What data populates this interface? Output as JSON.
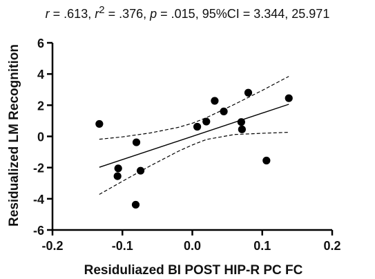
{
  "chart_data": {
    "type": "scatter",
    "title": {
      "r_sym": "r",
      "r_val": " = .613, ",
      "r2_sym": "r",
      "r2_sup": "2",
      "r2_val": " = .376, ",
      "p_sym": "p",
      "p_val": " = .015, 95%CI = 3.344, 25.971"
    },
    "xlabel": "Residuliazed BI POST HIP-R PC FC",
    "ylabel": "Residualized LM Recognition",
    "xlim": [
      -0.2,
      0.2
    ],
    "ylim": [
      -6,
      6
    ],
    "x_ticks": [
      -0.2,
      -0.1,
      0.0,
      0.1,
      0.2
    ],
    "x_tick_labels": [
      "-0.2",
      "-0.1",
      "0.0",
      "0.1",
      "0.2"
    ],
    "y_ticks": [
      -6,
      -4,
      -2,
      0,
      2,
      4,
      6
    ],
    "y_tick_labels": [
      "-6",
      "-4",
      "-2",
      "0",
      "2",
      "4",
      "6"
    ],
    "grid": false,
    "points": [
      {
        "x": -0.133,
        "y": 0.8
      },
      {
        "x": -0.106,
        "y": -2.05
      },
      {
        "x": -0.107,
        "y": -2.55
      },
      {
        "x": -0.08,
        "y": -0.38
      },
      {
        "x": -0.074,
        "y": -2.2
      },
      {
        "x": -0.081,
        "y": -4.38
      },
      {
        "x": 0.007,
        "y": 0.62
      },
      {
        "x": 0.02,
        "y": 0.95
      },
      {
        "x": 0.032,
        "y": 2.28
      },
      {
        "x": 0.045,
        "y": 1.6
      },
      {
        "x": 0.07,
        "y": 0.92
      },
      {
        "x": 0.071,
        "y": 0.45
      },
      {
        "x": 0.08,
        "y": 2.8
      },
      {
        "x": 0.106,
        "y": -1.55
      },
      {
        "x": 0.138,
        "y": 2.45
      }
    ],
    "regression": {
      "x": [
        -0.133,
        0.138
      ],
      "y": [
        -1.98,
        2.06
      ]
    },
    "ci_upper": {
      "x": [
        -0.133,
        -0.1,
        -0.06,
        -0.02,
        0.0,
        0.02,
        0.06,
        0.1,
        0.138
      ],
      "y": [
        -0.18,
        -0.03,
        0.22,
        0.58,
        0.84,
        1.2,
        2.05,
        2.95,
        3.85
      ]
    },
    "ci_lower": {
      "x": [
        -0.133,
        -0.1,
        -0.06,
        -0.02,
        0.0,
        0.02,
        0.06,
        0.1,
        0.138
      ],
      "y": [
        -3.72,
        -2.88,
        -1.88,
        -0.95,
        -0.55,
        -0.2,
        0.12,
        0.2,
        0.26
      ]
    },
    "colors": {
      "points": "#000000",
      "line": "#000000"
    }
  }
}
